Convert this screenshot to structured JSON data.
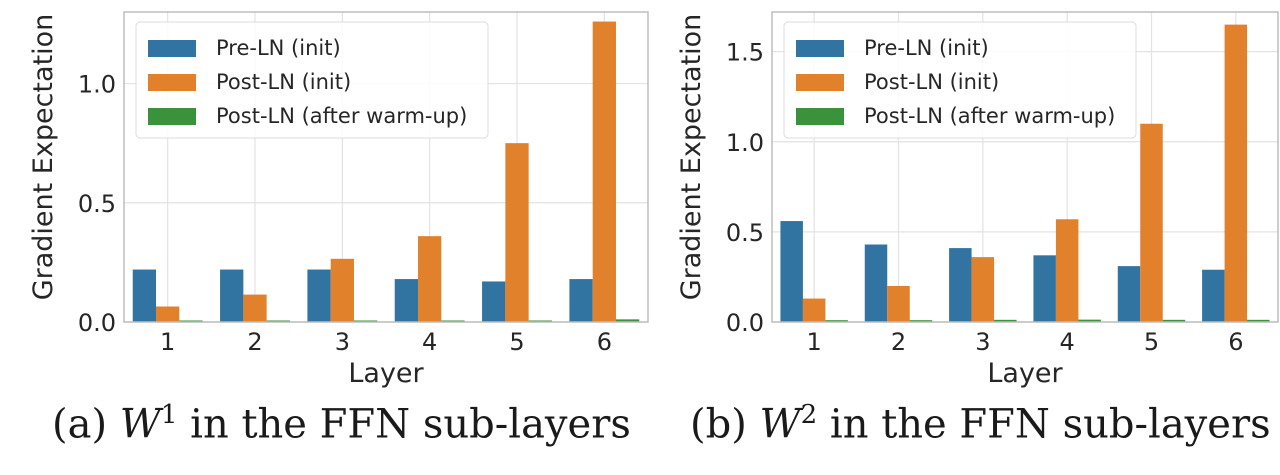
{
  "colors": {
    "pre_ln_init": "#3274a1",
    "post_ln_init": "#e1812c",
    "post_ln_warmup": "#3a923a"
  },
  "chart_data": [
    {
      "type": "bar",
      "categories": [
        "1",
        "2",
        "3",
        "4",
        "5",
        "6"
      ],
      "xlabel": "Layer",
      "ylabel": "Gradient Expectation",
      "ylim": [
        0,
        1.3
      ],
      "yticks": [
        0.0,
        0.5,
        1.0
      ],
      "ytick_labels": [
        "0.0",
        "0.5",
        "1.0"
      ],
      "grid": true,
      "legend_position": "top-left",
      "series": [
        {
          "name": "Pre-LN (init)",
          "values": [
            0.22,
            0.22,
            0.22,
            0.18,
            0.17,
            0.18
          ]
        },
        {
          "name": "Post-LN (init)",
          "values": [
            0.065,
            0.115,
            0.265,
            0.36,
            0.75,
            1.26
          ]
        },
        {
          "name": "Post-LN (after warm-up)",
          "values": [
            0.003,
            0.003,
            0.005,
            0.006,
            0.006,
            0.011
          ]
        }
      ],
      "caption": {
        "prefix": "(a) ",
        "var": "W",
        "sup": "1",
        "suffix": " in the FFN sub-layers"
      }
    },
    {
      "type": "bar",
      "categories": [
        "1",
        "2",
        "3",
        "4",
        "5",
        "6"
      ],
      "xlabel": "Layer",
      "ylabel": "Gradient Expectation",
      "ylim": [
        0,
        1.72
      ],
      "yticks": [
        0.0,
        0.5,
        1.0,
        1.5
      ],
      "ytick_labels": [
        "0.0",
        "0.5",
        "1.0",
        "1.5"
      ],
      "grid": true,
      "legend_position": "top-left",
      "series": [
        {
          "name": "Pre-LN (init)",
          "values": [
            0.56,
            0.43,
            0.41,
            0.37,
            0.31,
            0.29
          ]
        },
        {
          "name": "Post-LN (init)",
          "values": [
            0.13,
            0.2,
            0.36,
            0.57,
            1.1,
            1.65
          ]
        },
        {
          "name": "Post-LN (after warm-up)",
          "values": [
            0.01,
            0.01,
            0.012,
            0.013,
            0.012,
            0.012
          ]
        }
      ],
      "caption": {
        "prefix": "(b) ",
        "var": "W",
        "sup": "2",
        "suffix": " in the FFN sub-layers"
      }
    }
  ]
}
